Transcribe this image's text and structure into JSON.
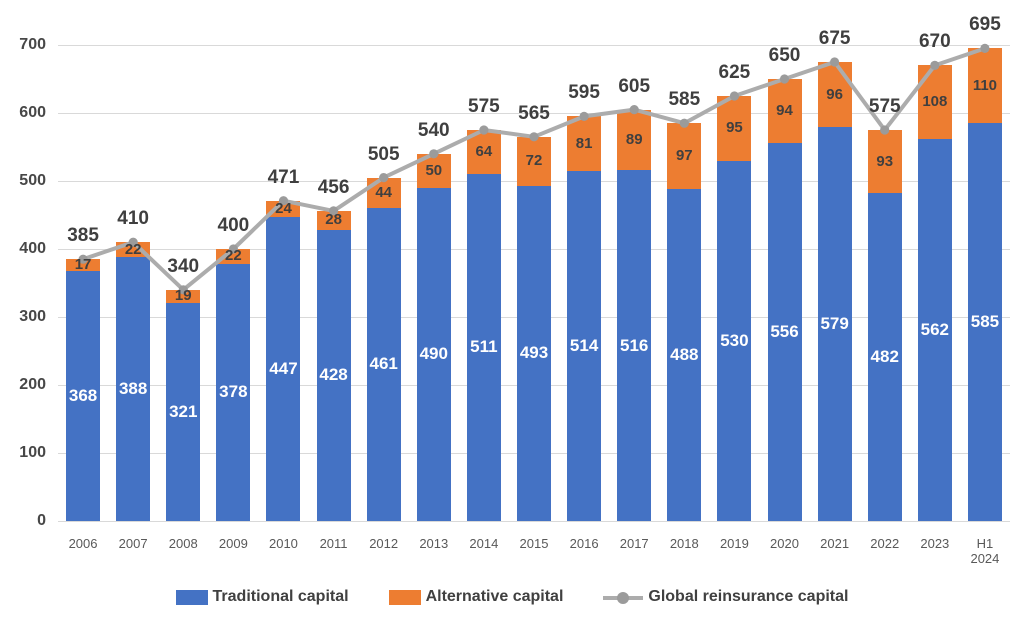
{
  "chart_data": {
    "type": "bar",
    "subtype": "stacked-column-with-line",
    "title": "",
    "xlabel": "",
    "ylabel": "",
    "categories": [
      "2006",
      "2007",
      "2008",
      "2009",
      "2010",
      "2011",
      "2012",
      "2013",
      "2014",
      "2015",
      "2016",
      "2017",
      "2018",
      "2019",
      "2020",
      "2021",
      "2022",
      "2023",
      "H1\n2024"
    ],
    "series": [
      {
        "name": "Traditional capital",
        "type": "bar",
        "color": "#4472C4",
        "values": [
          368,
          388,
          321,
          378,
          447,
          428,
          461,
          490,
          511,
          493,
          514,
          516,
          488,
          530,
          556,
          579,
          482,
          562,
          585
        ]
      },
      {
        "name": "Alternative capital",
        "type": "bar",
        "color": "#ED7D31",
        "values": [
          17,
          22,
          19,
          22,
          24,
          28,
          44,
          50,
          64,
          72,
          81,
          89,
          97,
          95,
          94,
          96,
          93,
          108,
          110
        ]
      },
      {
        "name": "Global reinsurance capital",
        "type": "line",
        "color": "#ACACAC",
        "marker_color": "#9B9B9B",
        "values": [
          385,
          410,
          340,
          400,
          471,
          456,
          505,
          540,
          575,
          565,
          595,
          605,
          585,
          625,
          650,
          675,
          575,
          670,
          695
        ]
      }
    ],
    "ylim": [
      0,
      700
    ],
    "yticks": [
      0,
      100,
      200,
      300,
      400,
      500,
      600,
      700
    ],
    "grid": true,
    "legend_position": "bottom",
    "colors": {
      "gridline": "#D9D9D9",
      "y_axis_label": "#474747",
      "x_axis_label": "#595959",
      "value_label_dark": "#3F3F3F",
      "value_label_light": "#FFFFFF"
    }
  }
}
